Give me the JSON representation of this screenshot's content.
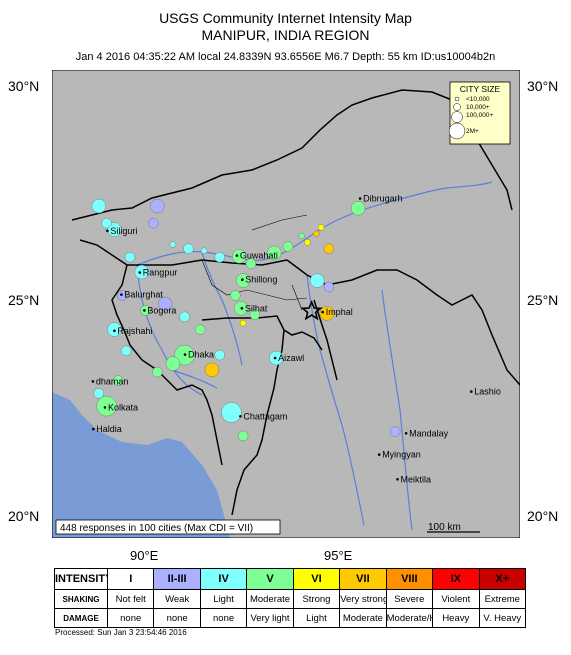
{
  "header": {
    "title": "USGS Community Internet Intensity Map",
    "region": "MANIPUR, INDIA REGION",
    "event_info": "Jan 4 2016 04:35:22 AM local 24.8339N 93.6556E M6.7 Depth: 55 km ID:us10004b2n"
  },
  "axes": {
    "lat_labels": [
      "30°N",
      "25°N",
      "20°N"
    ],
    "lon_labels": [
      "90°E",
      "95°E"
    ]
  },
  "cities": [
    {
      "name": "Dibrugarh",
      "lon": 94.9,
      "lat": 27.48
    },
    {
      "name": "Siliguri",
      "lon": 88.42,
      "lat": 26.72
    },
    {
      "name": "Guwahati",
      "lon": 91.74,
      "lat": 26.14
    },
    {
      "name": "Rangpur",
      "lon": 89.25,
      "lat": 25.74
    },
    {
      "name": "Shillong",
      "lon": 91.88,
      "lat": 25.57
    },
    {
      "name": "Balurghat",
      "lon": 88.78,
      "lat": 25.22
    },
    {
      "name": "Silhat",
      "lon": 91.87,
      "lat": 24.9
    },
    {
      "name": "Imphal",
      "lon": 93.94,
      "lat": 24.81
    },
    {
      "name": "Bogora",
      "lon": 89.37,
      "lat": 24.85
    },
    {
      "name": "Rajshahi",
      "lon": 88.6,
      "lat": 24.37
    },
    {
      "name": "Dhaka",
      "lon": 90.41,
      "lat": 23.81
    },
    {
      "name": "Aizawl",
      "lon": 92.72,
      "lat": 23.73
    },
    {
      "name": "dhaman",
      "lon": 88.05,
      "lat": 23.18
    },
    {
      "name": "Kolkata",
      "lon": 88.36,
      "lat": 22.57
    },
    {
      "name": "Lashio",
      "lon": 97.75,
      "lat": 22.94
    },
    {
      "name": "Chattagam",
      "lon": 91.83,
      "lat": 22.36
    },
    {
      "name": "Haldia",
      "lon": 88.06,
      "lat": 22.06
    },
    {
      "name": "Mandalay",
      "lon": 96.08,
      "lat": 21.96
    },
    {
      "name": "Myingyan",
      "lon": 95.39,
      "lat": 21.46
    },
    {
      "name": "Meiktila",
      "lon": 95.86,
      "lat": 20.88
    }
  ],
  "city_size_legend": {
    "title": "CITY SIZE",
    "items": [
      "<10,000",
      "10,000+",
      "100,000+",
      "2M+"
    ]
  },
  "responses_box": "448 responses in 100 cities (Max CDI = VII)",
  "scale_bar": "100 km",
  "epicenter": {
    "lon": 93.6556,
    "lat": 24.8339
  },
  "responses": [
    {
      "lon": 94.85,
      "lat": 27.25,
      "level": "V",
      "size": 3
    },
    {
      "lon": 93.9,
      "lat": 26.8,
      "level": "VI",
      "size": 1
    },
    {
      "lon": 93.78,
      "lat": 26.65,
      "level": "VII",
      "size": 1
    },
    {
      "lon": 93.4,
      "lat": 26.6,
      "level": "V",
      "size": 1
    },
    {
      "lon": 93.55,
      "lat": 26.45,
      "level": "VI",
      "size": 1
    },
    {
      "lon": 92.7,
      "lat": 26.2,
      "level": "V",
      "size": 3
    },
    {
      "lon": 93.05,
      "lat": 26.35,
      "level": "V",
      "size": 2
    },
    {
      "lon": 94.1,
      "lat": 26.3,
      "level": "VII",
      "size": 2
    },
    {
      "lon": 93.8,
      "lat": 25.55,
      "level": "IV",
      "size": 3
    },
    {
      "lon": 94.1,
      "lat": 25.4,
      "level": "II-III",
      "size": 2
    },
    {
      "lon": 94.05,
      "lat": 24.78,
      "level": "VII",
      "size": 3
    },
    {
      "lon": 91.8,
      "lat": 26.12,
      "level": "V",
      "size": 3
    },
    {
      "lon": 92.1,
      "lat": 25.95,
      "level": "V",
      "size": 2
    },
    {
      "lon": 91.3,
      "lat": 26.1,
      "level": "IV",
      "size": 2
    },
    {
      "lon": 91.9,
      "lat": 25.55,
      "level": "V",
      "size": 3
    },
    {
      "lon": 91.7,
      "lat": 25.2,
      "level": "V",
      "size": 2
    },
    {
      "lon": 91.85,
      "lat": 24.9,
      "level": "V",
      "size": 3
    },
    {
      "lon": 92.2,
      "lat": 24.75,
      "level": "V",
      "size": 2
    },
    {
      "lon": 91.9,
      "lat": 24.55,
      "level": "VI",
      "size": 1
    },
    {
      "lon": 92.75,
      "lat": 23.73,
      "level": "IV",
      "size": 3
    },
    {
      "lon": 90.4,
      "lat": 23.8,
      "level": "V",
      "size": 4
    },
    {
      "lon": 90.1,
      "lat": 23.6,
      "level": "V",
      "size": 3
    },
    {
      "lon": 89.7,
      "lat": 23.4,
      "level": "V",
      "size": 2
    },
    {
      "lon": 91.1,
      "lat": 23.45,
      "level": "VII",
      "size": 3
    },
    {
      "lon": 91.3,
      "lat": 23.8,
      "level": "IV",
      "size": 2
    },
    {
      "lon": 91.6,
      "lat": 22.45,
      "level": "IV",
      "size": 4
    },
    {
      "lon": 91.9,
      "lat": 21.9,
      "level": "V",
      "size": 2
    },
    {
      "lon": 89.3,
      "lat": 25.75,
      "level": "IV",
      "size": 3
    },
    {
      "lon": 89.0,
      "lat": 26.1,
      "level": "IV",
      "size": 2
    },
    {
      "lon": 88.6,
      "lat": 26.75,
      "level": "IV",
      "size": 3
    },
    {
      "lon": 88.4,
      "lat": 26.9,
      "level": "IV",
      "size": 2
    },
    {
      "lon": 88.2,
      "lat": 27.3,
      "level": "IV",
      "size": 3
    },
    {
      "lon": 89.7,
      "lat": 27.3,
      "level": "II-III",
      "size": 3
    },
    {
      "lon": 89.6,
      "lat": 26.9,
      "level": "II-III",
      "size": 2
    },
    {
      "lon": 88.8,
      "lat": 25.2,
      "level": "II-III",
      "size": 2
    },
    {
      "lon": 89.4,
      "lat": 24.85,
      "level": "V",
      "size": 2
    },
    {
      "lon": 88.6,
      "lat": 24.4,
      "level": "IV",
      "size": 3
    },
    {
      "lon": 88.9,
      "lat": 23.9,
      "level": "IV",
      "size": 2
    },
    {
      "lon": 88.4,
      "lat": 22.6,
      "level": "V",
      "size": 4
    },
    {
      "lon": 88.2,
      "lat": 22.9,
      "level": "IV",
      "size": 2
    },
    {
      "lon": 88.7,
      "lat": 23.2,
      "level": "V",
      "size": 2
    },
    {
      "lon": 90.4,
      "lat": 24.7,
      "level": "IV",
      "size": 2
    },
    {
      "lon": 90.8,
      "lat": 24.4,
      "level": "V",
      "size": 2
    },
    {
      "lon": 89.9,
      "lat": 25.0,
      "level": "II-III",
      "size": 3
    },
    {
      "lon": 95.8,
      "lat": 22.0,
      "level": "II-III",
      "size": 2
    },
    {
      "lon": 90.9,
      "lat": 26.25,
      "level": "IV",
      "size": 1
    },
    {
      "lon": 90.1,
      "lat": 26.4,
      "level": "IV",
      "size": 1
    },
    {
      "lon": 90.5,
      "lat": 26.3,
      "level": "IV",
      "size": 2
    }
  ],
  "intensity_scale": {
    "row_labels": {
      "intensity": "INTENSITY",
      "shaking": "SHAKING",
      "damage": "DAMAGE"
    },
    "columns": [
      {
        "intensity": "I",
        "shaking": "Not felt",
        "damage": "none",
        "color": "#FFFFFF"
      },
      {
        "intensity": "II-III",
        "shaking": "Weak",
        "damage": "none",
        "color": "#ACB1FF"
      },
      {
        "intensity": "IV",
        "shaking": "Light",
        "damage": "none",
        "color": "#80FFFF"
      },
      {
        "intensity": "V",
        "shaking": "Moderate",
        "damage": "Very light",
        "color": "#7EFF94"
      },
      {
        "intensity": "VI",
        "shaking": "Strong",
        "damage": "Light",
        "color": "#FFFF00"
      },
      {
        "intensity": "VII",
        "shaking": "Very strong",
        "damage": "Moderate",
        "color": "#FFC800"
      },
      {
        "intensity": "VIII",
        "shaking": "Severe",
        "damage": "Moderate/Heavy",
        "color": "#FF9100"
      },
      {
        "intensity": "IX",
        "shaking": "Violent",
        "damage": "Heavy",
        "color": "#FF0000"
      },
      {
        "intensity": "X+",
        "shaking": "Extreme",
        "damage": "V. Heavy",
        "color": "#C80000"
      }
    ]
  },
  "processed": "Processed: Sun Jan  3 23:54:46 2016",
  "colors": {
    "land": "#B8B8B8",
    "water": "#7A9CD6",
    "river": "#5A7FD8",
    "border": "#000000"
  }
}
